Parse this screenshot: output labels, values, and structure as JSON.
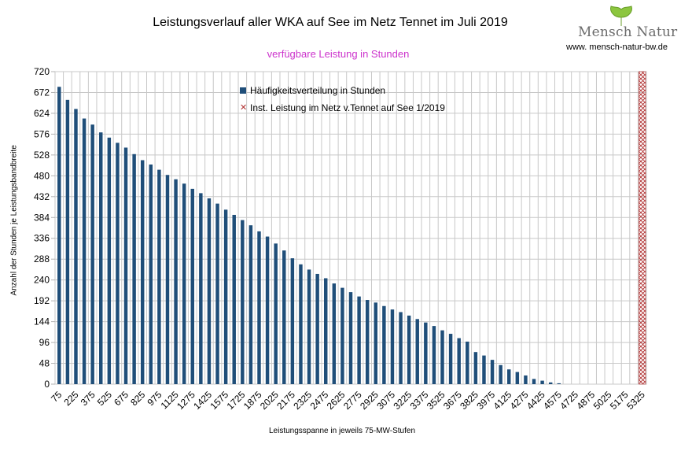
{
  "header": {
    "title": "Leistungsverlauf aller WKA auf See im Netz Tennet im Juli 2019",
    "subtitle": "verfügbare Leistung in Stunden",
    "logo_text": "Mensch Natur",
    "logo_url": "www. mensch-natur-bw.de"
  },
  "colors": {
    "bar": "#1f4e79",
    "hatch": "#b03030",
    "subtitle": "#cc33cc",
    "grid": "#c8c8c8"
  },
  "chart_data": {
    "type": "bar",
    "xlabel": "Leistungsspanne in jeweils 75-MW-Stufen",
    "ylabel": "Anzahl der Stunden je Leistungsbandbreite",
    "ylim": [
      0,
      720
    ],
    "yticks": [
      0,
      48,
      96,
      144,
      192,
      240,
      288,
      336,
      384,
      432,
      480,
      528,
      576,
      624,
      672,
      720
    ],
    "categories": [
      75,
      150,
      225,
      300,
      375,
      450,
      525,
      600,
      675,
      750,
      825,
      900,
      975,
      1050,
      1125,
      1200,
      1275,
      1350,
      1425,
      1500,
      1575,
      1650,
      1725,
      1800,
      1875,
      1950,
      2025,
      2100,
      2175,
      2250,
      2325,
      2400,
      2475,
      2550,
      2625,
      2700,
      2775,
      2850,
      2925,
      3000,
      3075,
      3150,
      3225,
      3300,
      3375,
      3450,
      3525,
      3600,
      3675,
      3750,
      3825,
      3900,
      3975,
      4050,
      4125,
      4200,
      4275,
      4350,
      4425,
      4500,
      4575,
      4650,
      4725,
      4800,
      4875,
      4950,
      5025,
      5100,
      5175,
      5250,
      5325
    ],
    "xtick_labels": [
      "75",
      "225",
      "375",
      "525",
      "675",
      "825",
      "975",
      "1125",
      "1275",
      "1425",
      "1575",
      "1725",
      "1875",
      "2025",
      "2175",
      "2325",
      "2475",
      "2625",
      "2775",
      "2925",
      "3075",
      "3225",
      "3375",
      "3525",
      "3675",
      "3825",
      "3975",
      "4125",
      "4275",
      "4425",
      "4575",
      "4725",
      "4875",
      "5025",
      "5175",
      "5325"
    ],
    "series": [
      {
        "name": "Häufigkeitsverteilung in Stunden",
        "values": [
          685,
          655,
          634,
          612,
          598,
          580,
          568,
          556,
          545,
          530,
          516,
          506,
          494,
          482,
          472,
          462,
          450,
          440,
          428,
          416,
          402,
          390,
          378,
          366,
          352,
          340,
          324,
          308,
          290,
          276,
          264,
          254,
          244,
          232,
          222,
          212,
          202,
          194,
          188,
          180,
          172,
          166,
          158,
          150,
          142,
          134,
          124,
          116,
          106,
          98,
          74,
          66,
          56,
          44,
          34,
          28,
          20,
          12,
          8,
          4,
          2,
          0,
          0,
          0,
          0,
          0,
          0,
          0,
          0,
          0,
          0
        ]
      },
      {
        "name": "Inst. Leistung im Netz v.Tennet auf See 1/2019",
        "x": 5325
      }
    ],
    "grid": true,
    "legend_position": "top-center"
  }
}
